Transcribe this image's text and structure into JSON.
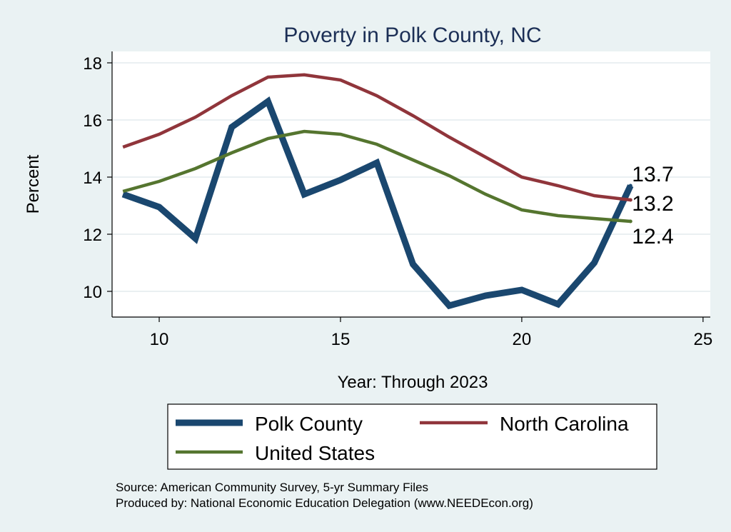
{
  "chart_data": {
    "type": "line",
    "title": "Poverty in Polk County, NC",
    "xlabel": "Year: Through 2023",
    "ylabel": "Percent",
    "xlim": [
      8.7,
      25.2
    ],
    "ylim": [
      9.1,
      18.4
    ],
    "xticks": [
      10,
      15,
      20,
      25
    ],
    "yticks": [
      10,
      12,
      14,
      16,
      18
    ],
    "grid": true,
    "legend_position": "bottom",
    "series": [
      {
        "name": "Polk County",
        "color": "#1a476f",
        "x": [
          9,
          10,
          11,
          12,
          13,
          14,
          15,
          16,
          17,
          18,
          19,
          20,
          21,
          22,
          23
        ],
        "values": [
          13.4,
          12.95,
          11.85,
          15.75,
          16.65,
          13.4,
          13.9,
          14.5,
          10.95,
          9.5,
          9.85,
          10.05,
          9.55,
          11.0,
          13.7
        ],
        "end_label": "13.7"
      },
      {
        "name": "North Carolina",
        "color": "#90353b",
        "x": [
          9,
          10,
          11,
          12,
          13,
          14,
          15,
          16,
          17,
          18,
          19,
          20,
          21,
          22,
          23
        ],
        "values": [
          15.05,
          15.5,
          16.1,
          16.85,
          17.5,
          17.58,
          17.4,
          16.85,
          16.15,
          15.4,
          14.7,
          14.0,
          13.7,
          13.35,
          13.2
        ],
        "end_label": "13.2"
      },
      {
        "name": "United States",
        "color": "#55752f",
        "x": [
          9,
          10,
          11,
          12,
          13,
          14,
          15,
          16,
          17,
          18,
          19,
          20,
          21,
          22,
          23
        ],
        "values": [
          13.5,
          13.85,
          14.3,
          14.85,
          15.35,
          15.6,
          15.5,
          15.15,
          14.6,
          14.05,
          13.4,
          12.85,
          12.65,
          12.55,
          12.45
        ],
        "end_label": "12.4"
      }
    ],
    "source_lines": [
      "Source: American Community Survey, 5-yr Summary Files",
      "Produced by: National Economic Education Delegation (www.NEEDEcon.org)"
    ]
  }
}
